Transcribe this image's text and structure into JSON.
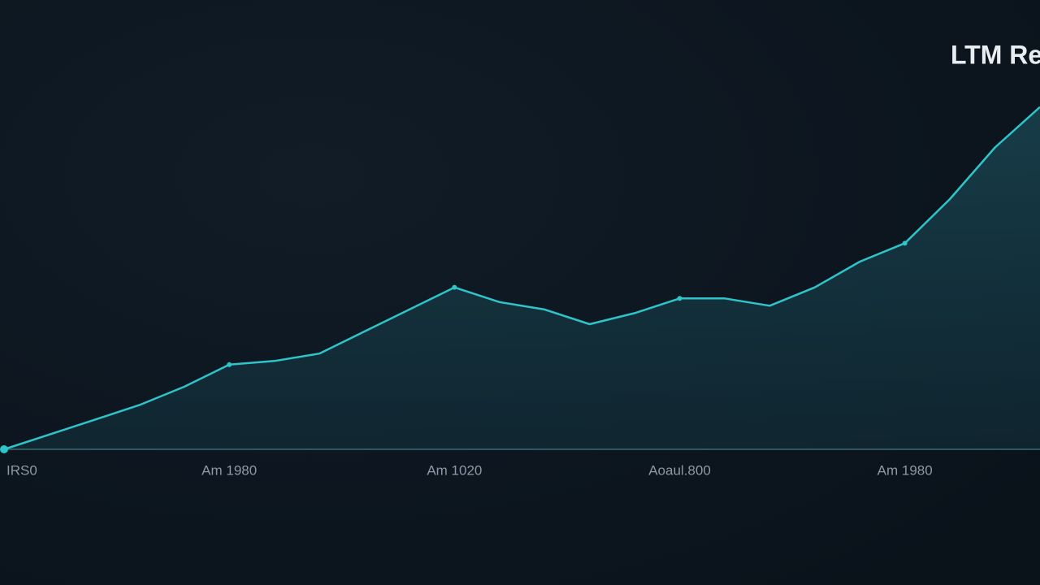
{
  "chart_data": {
    "type": "area",
    "title": "LTM Re",
    "categories": [
      "IRS0",
      null,
      null,
      null,
      null,
      "Am 1980",
      null,
      null,
      null,
      null,
      "Am 1020",
      null,
      null,
      null,
      null,
      "Aoaul.800",
      null,
      null,
      null,
      null,
      "Am 1980",
      null,
      null,
      null
    ],
    "series": [
      {
        "color": "#2ec4c9",
        "values": [
          0,
          4,
          8,
          12,
          17,
          23,
          24,
          26,
          32,
          38,
          44,
          40,
          38,
          34,
          37,
          41,
          41,
          39,
          44,
          51,
          56,
          68,
          82,
          93
        ]
      }
    ],
    "ylim": [
      0,
      100
    ],
    "markers": [
      0,
      5,
      10,
      15,
      20
    ]
  }
}
